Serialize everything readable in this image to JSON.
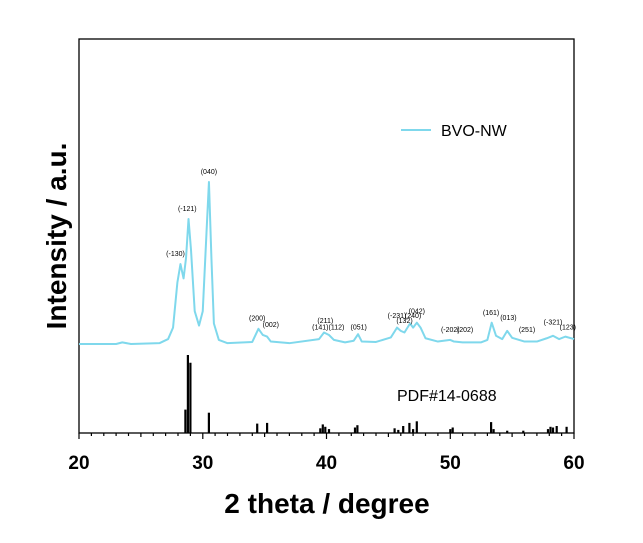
{
  "chart_data": {
    "type": "line",
    "xlabel": "2 theta / degree",
    "ylabel": "Intensity / a.u.",
    "xlim": [
      20,
      60
    ],
    "x_ticks": [
      "20",
      "30",
      "40",
      "50",
      "60"
    ],
    "legend": {
      "placement": "top-right",
      "entries": [
        "BVO-NW"
      ]
    },
    "colors": {
      "series": "#7fd8ec",
      "reference": "#000000",
      "axis": "#000000"
    },
    "grid": false,
    "series": [
      {
        "name": "BVO-NW",
        "baseline": 1.0,
        "points": [
          [
            20,
            1.0
          ],
          [
            23.0,
            1.0
          ],
          [
            23.5,
            1.4
          ],
          [
            24.2,
            1.0
          ],
          [
            26.5,
            1.2
          ],
          [
            27.2,
            2.2
          ],
          [
            27.6,
            5.0
          ],
          [
            27.95,
            16.0
          ],
          [
            28.2,
            20.5
          ],
          [
            28.45,
            17.0
          ],
          [
            28.65,
            22.0
          ],
          [
            28.85,
            31.5
          ],
          [
            29.05,
            24.0
          ],
          [
            29.35,
            9.0
          ],
          [
            29.7,
            5.5
          ],
          [
            30.0,
            9.0
          ],
          [
            30.3,
            28.0
          ],
          [
            30.5,
            40.5
          ],
          [
            30.7,
            22.0
          ],
          [
            30.9,
            6.0
          ],
          [
            31.3,
            2.0
          ],
          [
            32.0,
            1.2
          ],
          [
            34.0,
            1.5
          ],
          [
            34.5,
            4.7
          ],
          [
            34.85,
            3.2
          ],
          [
            35.2,
            2.8
          ],
          [
            35.5,
            1.6
          ],
          [
            37.0,
            1.2
          ],
          [
            39.4,
            2.2
          ],
          [
            39.8,
            3.8
          ],
          [
            40.2,
            3.2
          ],
          [
            40.6,
            2.0
          ],
          [
            41.5,
            1.4
          ],
          [
            42.2,
            1.8
          ],
          [
            42.55,
            3.4
          ],
          [
            42.85,
            1.6
          ],
          [
            44.0,
            1.5
          ],
          [
            45.2,
            2.6
          ],
          [
            45.7,
            5.0
          ],
          [
            46.0,
            4.2
          ],
          [
            46.3,
            3.8
          ],
          [
            46.75,
            6.0
          ],
          [
            47.0,
            5.0
          ],
          [
            47.3,
            6.2
          ],
          [
            47.6,
            5.0
          ],
          [
            48.0,
            2.4
          ],
          [
            49.0,
            1.6
          ],
          [
            50.0,
            2.0
          ],
          [
            50.3,
            1.6
          ],
          [
            51.0,
            1.4
          ],
          [
            52.5,
            1.4
          ],
          [
            53.0,
            2.0
          ],
          [
            53.35,
            6.2
          ],
          [
            53.7,
            3.0
          ],
          [
            54.2,
            2.2
          ],
          [
            54.6,
            4.2
          ],
          [
            55.0,
            2.5
          ],
          [
            56.0,
            1.6
          ],
          [
            57.0,
            1.6
          ],
          [
            57.8,
            2.4
          ],
          [
            58.3,
            3.0
          ],
          [
            58.8,
            2.2
          ],
          [
            59.3,
            2.8
          ],
          [
            60,
            2.2
          ]
        ]
      }
    ],
    "peak_labels": [
      {
        "text": "(-130)",
        "x": 27.8,
        "y": 22.5
      },
      {
        "text": "(-121)",
        "x": 28.75,
        "y": 33.5
      },
      {
        "text": "(040)",
        "x": 30.5,
        "y": 42.5
      },
      {
        "text": "(200)",
        "x": 34.4,
        "y": 6.7
      },
      {
        "text": "(002)",
        "x": 35.5,
        "y": 5.2
      },
      {
        "text": "(211)",
        "x": 39.9,
        "y": 6.1
      },
      {
        "text": "(141)",
        "x": 39.5,
        "y": 4.5
      },
      {
        "text": "(112)",
        "x": 40.8,
        "y": 4.5
      },
      {
        "text": "(051)",
        "x": 42.6,
        "y": 4.5
      },
      {
        "text": "(042)",
        "x": 47.3,
        "y": 8.5
      },
      {
        "text": "(-231)",
        "x": 45.7,
        "y": 7.3
      },
      {
        "text": "(240)",
        "x": 47.0,
        "y": 7.3
      },
      {
        "text": "(132)",
        "x": 46.3,
        "y": 6.1
      },
      {
        "text": "(-202)",
        "x": 50.0,
        "y": 3.9
      },
      {
        "text": "(202)",
        "x": 51.2,
        "y": 3.9
      },
      {
        "text": "(161)",
        "x": 53.3,
        "y": 8.1
      },
      {
        "text": "(013)",
        "x": 54.7,
        "y": 6.9
      },
      {
        "text": "(251)",
        "x": 56.2,
        "y": 3.9
      },
      {
        "text": "(-321)",
        "x": 58.3,
        "y": 5.7
      },
      {
        "text": "(123)",
        "x": 59.5,
        "y": 4.5
      }
    ],
    "reference": {
      "name": "PDF#14-0688",
      "max": 100,
      "sticks": [
        {
          "x": 28.6,
          "h": 30
        },
        {
          "x": 28.8,
          "h": 100
        },
        {
          "x": 29.0,
          "h": 90
        },
        {
          "x": 30.5,
          "h": 26
        },
        {
          "x": 34.4,
          "h": 12
        },
        {
          "x": 35.2,
          "h": 13
        },
        {
          "x": 39.5,
          "h": 6
        },
        {
          "x": 39.7,
          "h": 11
        },
        {
          "x": 39.9,
          "h": 8
        },
        {
          "x": 40.2,
          "h": 5
        },
        {
          "x": 42.3,
          "h": 7
        },
        {
          "x": 42.5,
          "h": 10
        },
        {
          "x": 45.5,
          "h": 6
        },
        {
          "x": 45.8,
          "h": 4
        },
        {
          "x": 46.2,
          "h": 9
        },
        {
          "x": 46.7,
          "h": 13
        },
        {
          "x": 47.0,
          "h": 5
        },
        {
          "x": 47.3,
          "h": 15
        },
        {
          "x": 50.0,
          "h": 5
        },
        {
          "x": 50.2,
          "h": 7
        },
        {
          "x": 53.3,
          "h": 14
        },
        {
          "x": 53.5,
          "h": 5
        },
        {
          "x": 54.6,
          "h": 3
        },
        {
          "x": 55.9,
          "h": 3
        },
        {
          "x": 57.9,
          "h": 5
        },
        {
          "x": 58.1,
          "h": 8
        },
        {
          "x": 58.3,
          "h": 7
        },
        {
          "x": 58.6,
          "h": 9
        },
        {
          "x": 59.4,
          "h": 8
        }
      ]
    }
  }
}
